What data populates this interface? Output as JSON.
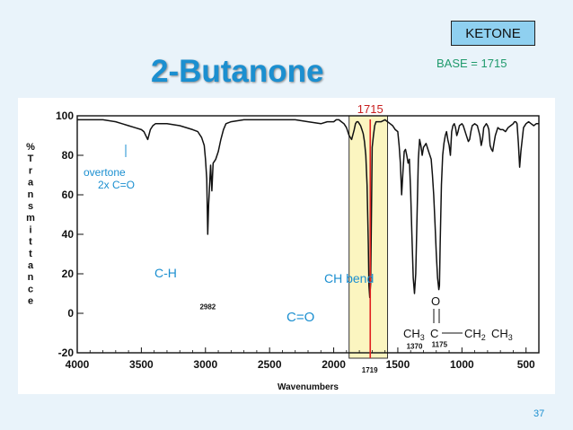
{
  "slide": {
    "title": "2-Butanone",
    "badge": "KETONE",
    "base": "BASE = 1715",
    "page_number": "37"
  },
  "colors": {
    "background": "#e9f3fa",
    "title": "#1b8fd0",
    "annotation": "#1b8fd0",
    "base_text": "#1f9a6c",
    "badge_fill": "#8fd0f0",
    "highlight": "#fbf5c0",
    "marker_line": "#e02020"
  },
  "chart_data": {
    "type": "line",
    "xlabel": "Wavenumbers",
    "ylabel": "% Transmittance",
    "ylabel_letters": [
      "%",
      "T",
      "r",
      "a",
      "n",
      "s",
      "m",
      "i",
      "t",
      "t",
      "a",
      "n",
      "c",
      "e"
    ],
    "xlim": [
      4000,
      400
    ],
    "ylim": [
      -20,
      100
    ],
    "x_ticks": [
      4000,
      3500,
      3000,
      2500,
      2000,
      1500,
      1000,
      500
    ],
    "y_ticks": [
      100,
      80,
      60,
      40,
      20,
      0,
      -20
    ],
    "marker_value": 1715,
    "marker_label": "1715",
    "highlight_range": [
      1880,
      1580
    ],
    "peak_labels": [
      {
        "x": 2982,
        "y": 2,
        "label": "2982"
      },
      {
        "x": 1370,
        "y": -18,
        "label": "1370"
      },
      {
        "x": 1175,
        "y": -17,
        "label": "1175"
      },
      {
        "x": 1719,
        "y": -30,
        "label": "1719"
      }
    ],
    "annotations": [
      {
        "id": "overtone",
        "text": "overtone"
      },
      {
        "id": "overtone2",
        "text": "2x C=O"
      },
      {
        "id": "ch",
        "text": "C-H"
      },
      {
        "id": "chbend",
        "text": "CH bend"
      },
      {
        "id": "co",
        "text": "C=O"
      }
    ],
    "molecule": {
      "o": "O",
      "ch3a": "CH",
      "sub3a": "3",
      "c": "C",
      "ch2": "CH",
      "sub2": "2",
      "ch3b": "CH",
      "sub3b": "3"
    },
    "spectrum": {
      "x": [
        4000,
        3900,
        3800,
        3700,
        3650,
        3600,
        3550,
        3500,
        3480,
        3450,
        3430,
        3410,
        3390,
        3300,
        3200,
        3100,
        3060,
        3030,
        3010,
        3000,
        2990,
        2982,
        2975,
        2960,
        2950,
        2940,
        2920,
        2900,
        2880,
        2860,
        2840,
        2800,
        2700,
        2600,
        2500,
        2400,
        2300,
        2200,
        2100,
        2050,
        2000,
        1980,
        1960,
        1940,
        1920,
        1900,
        1880,
        1860,
        1840,
        1830,
        1820,
        1810,
        1800,
        1790,
        1780,
        1770,
        1760,
        1750,
        1740,
        1730,
        1725,
        1719,
        1712,
        1705,
        1700,
        1690,
        1680,
        1670,
        1660,
        1650,
        1630,
        1600,
        1580,
        1560,
        1540,
        1520,
        1500,
        1490,
        1480,
        1470,
        1460,
        1450,
        1440,
        1430,
        1420,
        1410,
        1400,
        1390,
        1380,
        1370,
        1360,
        1350,
        1340,
        1330,
        1320,
        1310,
        1300,
        1280,
        1260,
        1240,
        1230,
        1220,
        1210,
        1200,
        1190,
        1180,
        1175,
        1170,
        1160,
        1150,
        1140,
        1130,
        1120,
        1110,
        1100,
        1090,
        1080,
        1070,
        1060,
        1050,
        1040,
        1030,
        1020,
        1000,
        990,
        980,
        970,
        960,
        950,
        940,
        930,
        920,
        900,
        880,
        860,
        850,
        840,
        830,
        820,
        810,
        800,
        790,
        780,
        770,
        760,
        750,
        740,
        720,
        700,
        680,
        660,
        640,
        620,
        600,
        590,
        580,
        570,
        560,
        550,
        540,
        520,
        500,
        480,
        460,
        440,
        420,
        400
      ],
      "y": [
        98,
        98,
        98,
        97,
        96,
        95,
        94,
        93,
        92,
        88,
        93,
        95,
        96,
        96,
        95,
        93,
        92,
        89,
        85,
        78,
        68,
        40,
        55,
        75,
        62,
        76,
        78,
        82,
        88,
        93,
        96,
        97,
        98,
        98,
        98,
        98,
        98,
        97,
        96,
        97,
        97,
        98,
        98,
        97,
        96,
        94,
        90,
        88,
        93,
        96,
        97,
        97,
        96,
        95,
        93,
        91,
        87,
        80,
        65,
        35,
        14,
        8,
        15,
        55,
        84,
        90,
        95,
        97,
        97,
        97,
        97,
        98,
        97,
        96,
        95,
        93,
        92,
        85,
        76,
        60,
        72,
        82,
        83,
        80,
        76,
        78,
        62,
        40,
        18,
        10,
        20,
        50,
        78,
        88,
        85,
        80,
        84,
        86,
        82,
        78,
        70,
        60,
        45,
        30,
        18,
        12,
        14,
        35,
        65,
        80,
        86,
        90,
        92,
        88,
        85,
        80,
        92,
        95,
        96,
        94,
        90,
        92,
        95,
        96,
        95,
        93,
        91,
        89,
        87,
        88,
        92,
        95,
        96,
        95,
        90,
        85,
        88,
        94,
        95,
        96,
        95,
        93,
        85,
        83,
        82,
        86,
        90,
        94,
        93,
        93,
        92,
        94,
        95,
        96,
        97,
        97,
        96,
        86,
        74,
        82,
        94,
        96,
        97,
        96,
        95,
        96,
        96
      ]
    }
  }
}
